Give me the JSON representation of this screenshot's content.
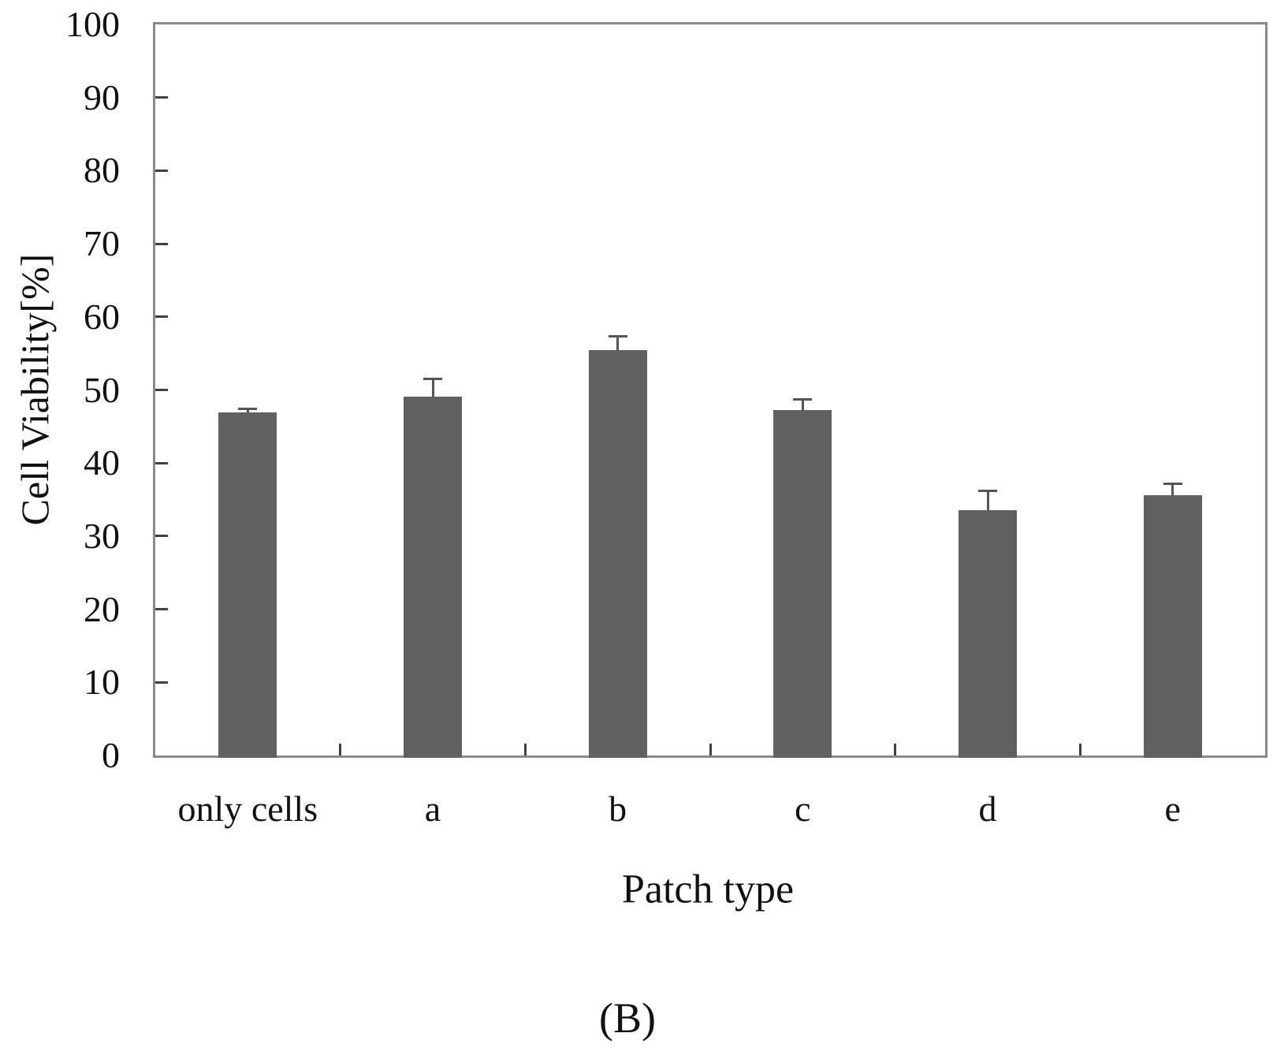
{
  "figure": {
    "caption": "(B)"
  },
  "chart_data": {
    "type": "bar",
    "title": "",
    "xlabel": "Patch type",
    "ylabel": "Cell Viability[%]",
    "categories": [
      "only cells",
      "a",
      "b",
      "c",
      "d",
      "e"
    ],
    "values": [
      46.9,
      49.1,
      55.5,
      47.3,
      33.5,
      35.6
    ],
    "errors_upper": [
      0.4,
      2.3,
      1.7,
      1.2,
      2.5,
      1.4
    ],
    "ylim": [
      0,
      100
    ],
    "yticks": [
      0,
      10,
      20,
      30,
      40,
      50,
      60,
      70,
      80,
      90,
      100
    ],
    "grid": false,
    "legend": "none",
    "bar_color": "#606060",
    "frame_color": "#8a8a8a",
    "tick_color": "#3f3f3f",
    "error_color": "#555555",
    "text_color": "#111111",
    "background_color": "#ffffff"
  }
}
